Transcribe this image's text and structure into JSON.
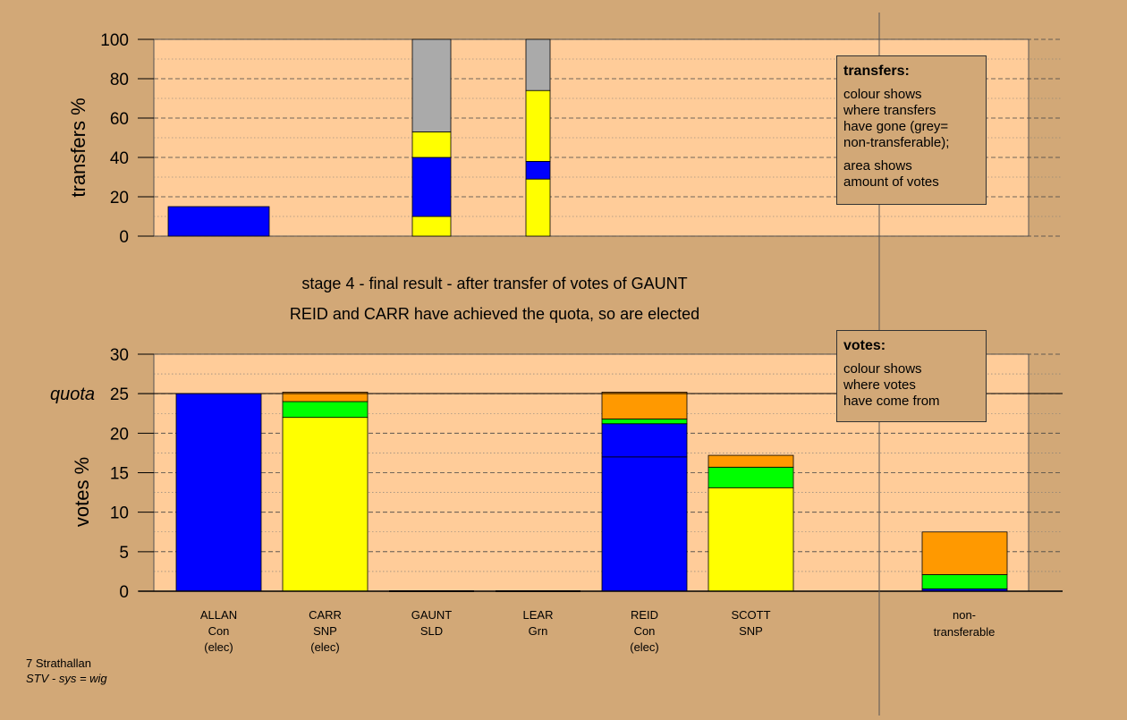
{
  "colors": {
    "page_bg": "#d2a877",
    "plot_bg": "#ffcc99",
    "con": "#0000ff",
    "snp": "#ffff00",
    "sld": "#ff9900",
    "grn": "#00ff00",
    "non_transferable": "#aaaaaa",
    "axis": "#000000"
  },
  "chart_data": [
    {
      "type": "bar",
      "ylabel": "transfers %",
      "ylim": [
        0,
        100
      ],
      "yticks": [
        0,
        20,
        40,
        60,
        80,
        100
      ],
      "stacked": true,
      "categories": [
        "ALLAN",
        "CARR",
        "GAUNT",
        "LEAR",
        "REID",
        "SCOTT",
        "non-transferable"
      ],
      "bars": [
        {
          "category": "ALLAN",
          "segments": [
            {
              "color": "#0000ff",
              "value": 15
            }
          ]
        },
        {
          "category": "GAUNT",
          "segments": [
            {
              "color": "#ffff00",
              "value": 10
            },
            {
              "color": "#0000ff",
              "value": 30
            },
            {
              "color": "#ffff00",
              "value": 13
            },
            {
              "color": "#aaaaaa",
              "value": 47
            }
          ]
        },
        {
          "category": "LEAR",
          "segments": [
            {
              "color": "#ffff00",
              "value": 29
            },
            {
              "color": "#0000ff",
              "value": 9
            },
            {
              "color": "#ffff00",
              "value": 36
            },
            {
              "color": "#aaaaaa",
              "value": 26
            }
          ]
        }
      ],
      "legend_box": {
        "title": "transfers:",
        "lines": [
          "colour shows",
          "where transfers",
          "have gone (grey=",
          "non-transferable);"
        ],
        "lines2": [
          "area shows",
          "amount of votes"
        ]
      }
    },
    {
      "type": "bar",
      "ylabel": "votes %",
      "ylim": [
        0,
        30
      ],
      "yticks": [
        0,
        5,
        10,
        15,
        20,
        25,
        30
      ],
      "stacked": true,
      "quota": 25,
      "quota_label": "quota",
      "categories": [
        "ALLAN",
        "CARR",
        "GAUNT",
        "LEAR",
        "REID",
        "SCOTT",
        "non-transferable"
      ],
      "bars": [
        {
          "category": "ALLAN",
          "segments": [
            {
              "color": "#0000ff",
              "value": 25
            }
          ]
        },
        {
          "category": "CARR",
          "segments": [
            {
              "color": "#ffff00",
              "value": 22
            },
            {
              "color": "#00ff00",
              "value": 2
            },
            {
              "color": "#ff9900",
              "value": 1.2
            }
          ]
        },
        {
          "category": "GAUNT",
          "segments": []
        },
        {
          "category": "LEAR",
          "segments": []
        },
        {
          "category": "REID",
          "segments": [
            {
              "color": "#0000ff",
              "value": 17
            },
            {
              "color": "#0000ff",
              "value": 4.2
            },
            {
              "color": "#00ff00",
              "value": 0.6
            },
            {
              "color": "#ff9900",
              "value": 3.4
            }
          ]
        },
        {
          "category": "SCOTT",
          "segments": [
            {
              "color": "#ffff00",
              "value": 13.1
            },
            {
              "color": "#00ff00",
              "value": 2.6
            },
            {
              "color": "#ff9900",
              "value": 1.5
            }
          ]
        },
        {
          "category": "non-transferable",
          "segments": [
            {
              "color": "#0000ff",
              "value": 0.3
            },
            {
              "color": "#00ff00",
              "value": 1.8
            },
            {
              "color": "#ff9900",
              "value": 5.4
            }
          ]
        }
      ],
      "legend_box": {
        "title": "votes:",
        "lines": [
          "colour shows",
          "where votes",
          "have come from"
        ]
      }
    }
  ],
  "caption": {
    "line1": "stage 4 - final result - after transfer of votes of GAUNT",
    "line2": "REID and CARR have achieved the quota, so are elected"
  },
  "candidates": [
    {
      "name": "ALLAN",
      "party": "Con",
      "status": "(elec)"
    },
    {
      "name": "CARR",
      "party": "SNP",
      "status": "(elec)"
    },
    {
      "name": "GAUNT",
      "party": "SLD",
      "status": ""
    },
    {
      "name": "LEAR",
      "party": "Grn",
      "status": ""
    },
    {
      "name": "REID",
      "party": "Con",
      "status": "(elec)"
    },
    {
      "name": "SCOTT",
      "party": "SNP",
      "status": ""
    }
  ],
  "nontransferable_label": [
    "non-",
    "transferable"
  ],
  "footer": {
    "ward": "7 Strathallan",
    "system": "STV - sys = wig"
  }
}
